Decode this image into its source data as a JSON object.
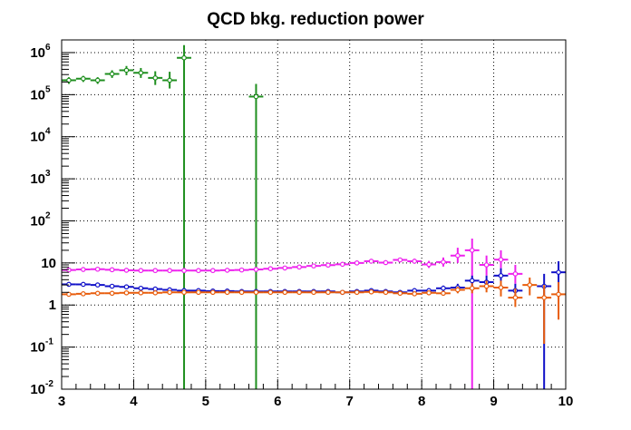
{
  "chart_data": {
    "type": "scatter",
    "title": "QCD bkg. reduction power",
    "xlabel": "",
    "ylabel": "",
    "xlim": [
      3,
      10
    ],
    "ylim": [
      0.01,
      2000000
    ],
    "y_scale": "log",
    "grid": true,
    "legend": "none",
    "x_ticks": [
      "3",
      "4",
      "5",
      "6",
      "7",
      "8",
      "9",
      "10"
    ],
    "y_ticks": [
      {
        "value": 0.01,
        "base": "10",
        "exp": "-2"
      },
      {
        "value": 0.1,
        "base": "10",
        "exp": "-1"
      },
      {
        "value": 1,
        "base": "1",
        "exp": ""
      },
      {
        "value": 10,
        "base": "10",
        "exp": ""
      },
      {
        "value": 100,
        "base": "10",
        "exp": "2"
      },
      {
        "value": 1000,
        "base": "10",
        "exp": "3"
      },
      {
        "value": 10000,
        "base": "10",
        "exp": "4"
      },
      {
        "value": 100000,
        "base": "10",
        "exp": "5"
      },
      {
        "value": 1000000,
        "base": "10",
        "exp": "6"
      }
    ],
    "series": [
      {
        "color": "#1f8f1f",
        "x_halfwidth": 0.1,
        "points": [
          [
            3.1,
            220000,
            180000,
            260000
          ],
          [
            3.3,
            240000,
            200000,
            280000
          ],
          [
            3.5,
            220000,
            180000,
            260000
          ],
          [
            3.7,
            310000,
            250000,
            380000
          ],
          [
            3.9,
            380000,
            290000,
            480000
          ],
          [
            4.1,
            330000,
            250000,
            430000
          ],
          [
            4.3,
            250000,
            170000,
            360000
          ],
          [
            4.5,
            220000,
            140000,
            350000
          ],
          [
            4.7,
            750000,
            0.001,
            1500000
          ],
          [
            5.7,
            90000,
            0.001,
            180000
          ]
        ]
      },
      {
        "color": "#ee22ee",
        "x_halfwidth": 0.1,
        "points": [
          [
            3.1,
            6.8,
            6.2,
            7.4
          ],
          [
            3.3,
            7.0,
            6.5,
            7.6
          ],
          [
            3.5,
            7.1,
            6.6,
            7.7
          ],
          [
            3.7,
            6.9,
            6.4,
            7.4
          ],
          [
            3.9,
            6.7,
            6.2,
            7.2
          ],
          [
            4.1,
            6.6,
            6.1,
            7.1
          ],
          [
            4.3,
            6.6,
            6.1,
            7.1
          ],
          [
            4.5,
            6.6,
            6.1,
            7.1
          ],
          [
            4.7,
            6.6,
            6.1,
            7.1
          ],
          [
            4.9,
            6.6,
            6.1,
            7.1
          ],
          [
            5.1,
            6.6,
            6.1,
            7.1
          ],
          [
            5.3,
            6.7,
            6.2,
            7.2
          ],
          [
            5.5,
            6.8,
            6.3,
            7.3
          ],
          [
            5.7,
            7.0,
            6.5,
            7.5
          ],
          [
            5.9,
            7.3,
            6.8,
            7.8
          ],
          [
            6.1,
            7.6,
            7.0,
            8.2
          ],
          [
            6.3,
            8.0,
            7.4,
            8.6
          ],
          [
            6.5,
            8.5,
            7.8,
            9.2
          ],
          [
            6.7,
            8.9,
            8.2,
            9.6
          ],
          [
            6.9,
            9.3,
            8.5,
            10.1
          ],
          [
            7.1,
            10.0,
            9.2,
            10.9
          ],
          [
            7.3,
            11.0,
            10.0,
            12.1
          ],
          [
            7.5,
            10.2,
            9.2,
            11.3
          ],
          [
            7.7,
            11.8,
            10.5,
            13.2
          ],
          [
            7.9,
            11.0,
            9.6,
            12.6
          ],
          [
            8.1,
            9.2,
            7.6,
            11.2
          ],
          [
            8.3,
            10.5,
            8.2,
            13.5
          ],
          [
            8.5,
            15.0,
            10.0,
            23.0
          ],
          [
            8.7,
            20.0,
            0.001,
            38.0
          ],
          [
            8.9,
            9.0,
            5.0,
            15.0
          ],
          [
            9.1,
            12.0,
            7.5,
            20.0
          ],
          [
            9.3,
            5.5,
            3.2,
            9.0
          ]
        ]
      },
      {
        "color": "#1010c8",
        "x_halfwidth": 0.1,
        "points": [
          [
            3.1,
            3.1,
            2.9,
            3.3
          ],
          [
            3.3,
            3.1,
            2.9,
            3.3
          ],
          [
            3.5,
            3.0,
            2.8,
            3.2
          ],
          [
            3.7,
            2.8,
            2.6,
            3.0
          ],
          [
            3.9,
            2.7,
            2.5,
            2.9
          ],
          [
            4.1,
            2.5,
            2.3,
            2.7
          ],
          [
            4.3,
            2.4,
            2.2,
            2.6
          ],
          [
            4.5,
            2.3,
            2.1,
            2.5
          ],
          [
            4.7,
            2.2,
            2.0,
            2.4
          ],
          [
            4.9,
            2.2,
            2.0,
            2.4
          ],
          [
            5.1,
            2.15,
            1.95,
            2.35
          ],
          [
            5.3,
            2.15,
            1.95,
            2.35
          ],
          [
            5.5,
            2.1,
            1.9,
            2.3
          ],
          [
            5.7,
            2.1,
            1.9,
            2.3
          ],
          [
            5.9,
            2.1,
            1.9,
            2.3
          ],
          [
            6.1,
            2.1,
            1.9,
            2.3
          ],
          [
            6.3,
            2.1,
            1.9,
            2.3
          ],
          [
            6.5,
            2.1,
            1.9,
            2.3
          ],
          [
            6.7,
            2.1,
            1.9,
            2.3
          ],
          [
            6.9,
            2.0,
            1.8,
            2.2
          ],
          [
            7.1,
            2.1,
            1.9,
            2.3
          ],
          [
            7.3,
            2.2,
            2.0,
            2.4
          ],
          [
            7.5,
            2.1,
            1.9,
            2.3
          ],
          [
            7.7,
            2.0,
            1.8,
            2.2
          ],
          [
            7.9,
            2.2,
            2.0,
            2.5
          ],
          [
            8.1,
            2.2,
            1.9,
            2.5
          ],
          [
            8.3,
            2.5,
            2.1,
            2.9
          ],
          [
            8.5,
            2.6,
            2.1,
            3.2
          ],
          [
            8.7,
            3.8,
            2.8,
            5.0
          ],
          [
            8.9,
            3.5,
            2.4,
            5.0
          ],
          [
            9.1,
            5.0,
            3.2,
            7.5
          ],
          [
            9.3,
            2.2,
            1.4,
            3.2
          ],
          [
            9.7,
            2.8,
            0.001,
            5.5
          ],
          [
            9.9,
            6.0,
            2.0,
            11.0
          ]
        ]
      },
      {
        "color": "#e85d0c",
        "x_halfwidth": 0.1,
        "points": [
          [
            3.1,
            1.8,
            1.65,
            1.95
          ],
          [
            3.3,
            1.85,
            1.7,
            2.0
          ],
          [
            3.5,
            1.9,
            1.75,
            2.05
          ],
          [
            3.7,
            1.9,
            1.75,
            2.05
          ],
          [
            3.9,
            1.95,
            1.8,
            2.1
          ],
          [
            4.1,
            1.95,
            1.8,
            2.1
          ],
          [
            4.3,
            1.95,
            1.8,
            2.1
          ],
          [
            4.5,
            2.0,
            1.85,
            2.15
          ],
          [
            4.7,
            2.0,
            1.85,
            2.15
          ],
          [
            4.9,
            2.0,
            1.85,
            2.15
          ],
          [
            5.1,
            2.0,
            1.85,
            2.15
          ],
          [
            5.3,
            2.0,
            1.85,
            2.15
          ],
          [
            5.5,
            2.0,
            1.85,
            2.15
          ],
          [
            5.7,
            2.0,
            1.85,
            2.15
          ],
          [
            5.9,
            2.0,
            1.85,
            2.15
          ],
          [
            6.1,
            2.0,
            1.85,
            2.15
          ],
          [
            6.3,
            2.0,
            1.85,
            2.15
          ],
          [
            6.5,
            2.0,
            1.85,
            2.15
          ],
          [
            6.7,
            2.0,
            1.85,
            2.15
          ],
          [
            6.9,
            2.0,
            1.85,
            2.15
          ],
          [
            7.1,
            2.0,
            1.85,
            2.15
          ],
          [
            7.3,
            2.05,
            1.9,
            2.2
          ],
          [
            7.5,
            2.0,
            1.85,
            2.15
          ],
          [
            7.7,
            1.9,
            1.75,
            2.05
          ],
          [
            7.9,
            1.85,
            1.7,
            2.0
          ],
          [
            8.1,
            1.95,
            1.75,
            2.15
          ],
          [
            8.3,
            1.9,
            1.7,
            2.1
          ],
          [
            8.5,
            2.3,
            1.9,
            2.7
          ],
          [
            8.7,
            2.5,
            1.9,
            3.3
          ],
          [
            8.9,
            2.8,
            2.0,
            3.8
          ],
          [
            9.1,
            2.6,
            1.6,
            3.8
          ],
          [
            9.3,
            1.5,
            0.9,
            2.5
          ],
          [
            9.5,
            3.0,
            1.7,
            4.5
          ],
          [
            9.7,
            1.5,
            0.12,
            3.0
          ],
          [
            9.9,
            1.8,
            0.45,
            3.5
          ]
        ]
      }
    ]
  }
}
